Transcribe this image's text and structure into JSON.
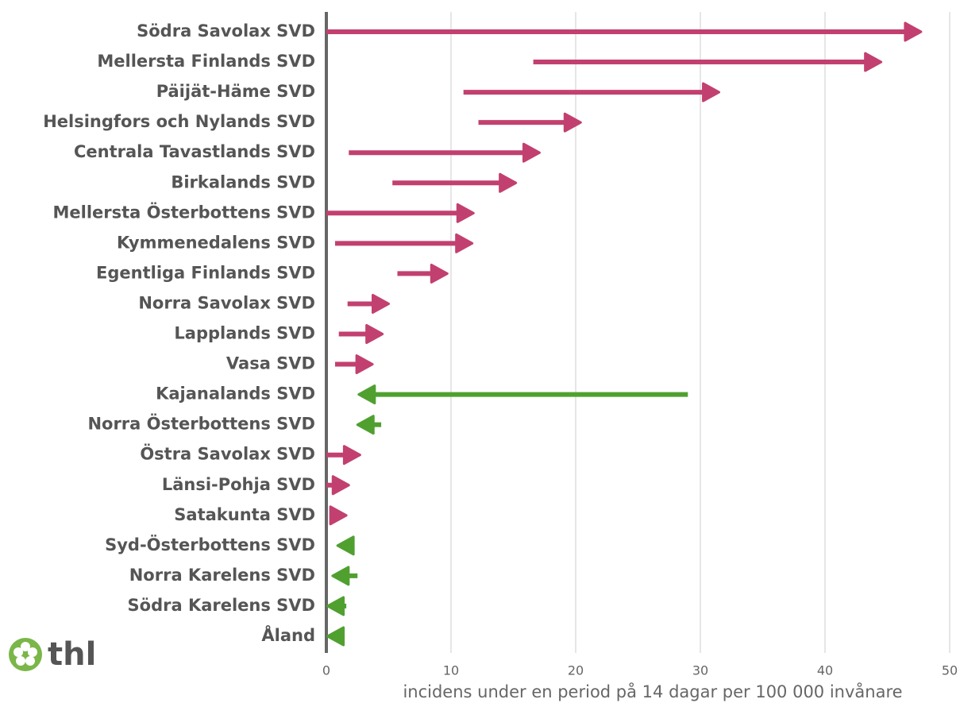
{
  "chart_data": {
    "type": "arrow",
    "categories": [
      "Södra Savolax SVD",
      "Mellersta Finlands SVD",
      "Päijät-Häme SVD",
      "Helsingfors och Nylands SVD",
      "Centrala Tavastlands SVD",
      "Birkalands SVD",
      "Mellersta Österbottens SVD",
      "Kymmenedalens SVD",
      "Egentliga Finlands SVD",
      "Norra Savolax SVD",
      "Lapplands SVD",
      "Vasa SVD",
      "Kajanalands SVD",
      "Norra Österbottens SVD",
      "Östra Savolax SVD",
      "Länsi-Pohja SVD",
      "Satakunta SVD",
      "Syd-Österbottens SVD",
      "Norra Karelens SVD",
      "Södra Karelens SVD",
      "Åland"
    ],
    "start": [
      0,
      16.6,
      11.0,
      12.2,
      1.8,
      5.3,
      0,
      0.7,
      5.7,
      1.7,
      1.0,
      0.7,
      29.0,
      4.4,
      0,
      0,
      0.4,
      2.0,
      2.5,
      1.6,
      1.0
    ],
    "end": [
      47.7,
      44.5,
      31.5,
      20.4,
      17.1,
      15.2,
      11.8,
      11.7,
      9.7,
      5.0,
      4.5,
      3.7,
      2.6,
      2.5,
      2.7,
      1.8,
      1.6,
      0.9,
      0.5,
      0.1,
      0.1
    ],
    "color_increase": "#c2406f",
    "color_decrease": "#50a030",
    "xlim": [
      0,
      50
    ],
    "xticks": [
      0,
      10,
      20,
      30,
      40,
      50
    ],
    "grid": true,
    "xlabel": "incidens under en period på 14 dagar per 100 000 invånare"
  },
  "logo": "thl"
}
